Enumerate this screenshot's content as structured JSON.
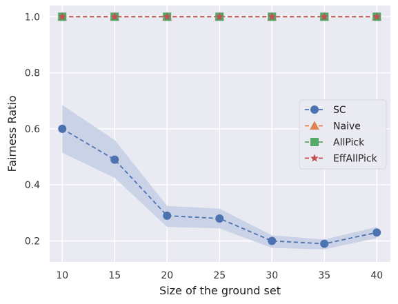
{
  "chart_data": {
    "type": "line",
    "xlabel": "Size of the ground set",
    "ylabel": "Fairness Ratio",
    "x": [
      10,
      15,
      20,
      25,
      30,
      35,
      40
    ],
    "xticks": [
      "10",
      "15",
      "20",
      "25",
      "30",
      "35",
      "40"
    ],
    "yticks": [
      "0.2",
      "0.4",
      "0.6",
      "0.8",
      "1.0"
    ],
    "xlim": [
      8.8,
      41.3
    ],
    "ylim": [
      0.125,
      1.04
    ],
    "grid": true,
    "legend_position": "center-right",
    "series": [
      {
        "name": "SC",
        "values": [
          0.6,
          0.49,
          0.29,
          0.28,
          0.2,
          0.19,
          0.23
        ],
        "band_low": [
          0.515,
          0.425,
          0.25,
          0.245,
          0.175,
          0.17,
          0.21
        ],
        "band_high": [
          0.685,
          0.56,
          0.325,
          0.315,
          0.22,
          0.205,
          0.25
        ],
        "color": "#4c72b0",
        "marker": "circle"
      },
      {
        "name": "Naive",
        "values": [
          1.0,
          1.0,
          1.0,
          1.0,
          1.0,
          1.0,
          1.0
        ],
        "color": "#dd8452",
        "marker": "triangle"
      },
      {
        "name": "AllPick",
        "values": [
          1.0,
          1.0,
          1.0,
          1.0,
          1.0,
          1.0,
          1.0
        ],
        "color": "#55a868",
        "marker": "square"
      },
      {
        "name": "EffAllPick",
        "values": [
          1.0,
          1.0,
          1.0,
          1.0,
          1.0,
          1.0,
          1.0
        ],
        "color": "#c44e52",
        "marker": "star"
      }
    ],
    "colors": {
      "plot_bg": "#eaeaf2",
      "grid": "#ffffff",
      "band": "#c5cfe4"
    }
  }
}
